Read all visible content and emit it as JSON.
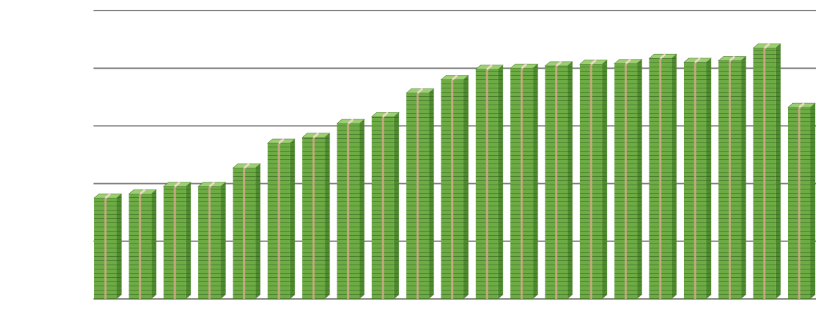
{
  "chart_data": {
    "type": "bar",
    "title": "",
    "xlabel": "",
    "ylabel": "",
    "categories": [
      "",
      "",
      "",
      "",
      "",
      "",
      "",
      "",
      "",
      "",
      "",
      "",
      "",
      "",
      "",
      "",
      "",
      "",
      "",
      "",
      ""
    ],
    "values": [
      1.75,
      1.82,
      1.95,
      1.95,
      2.27,
      2.7,
      2.8,
      3.04,
      3.16,
      3.57,
      3.8,
      3.98,
      4.0,
      4.04,
      4.07,
      4.08,
      4.17,
      4.1,
      4.13,
      4.35,
      3.32
    ],
    "ylim": [
      0,
      5
    ],
    "grid": true,
    "legend": "none",
    "bar_style": "stacked-banknotes",
    "colors": {
      "bill_front": "#6dab45",
      "bill_side": "#4f8a2f",
      "bill_top": "#9bcf72",
      "bill_line": "#4a7d2c",
      "band": "#d8a88c",
      "grid": "#808080"
    }
  }
}
